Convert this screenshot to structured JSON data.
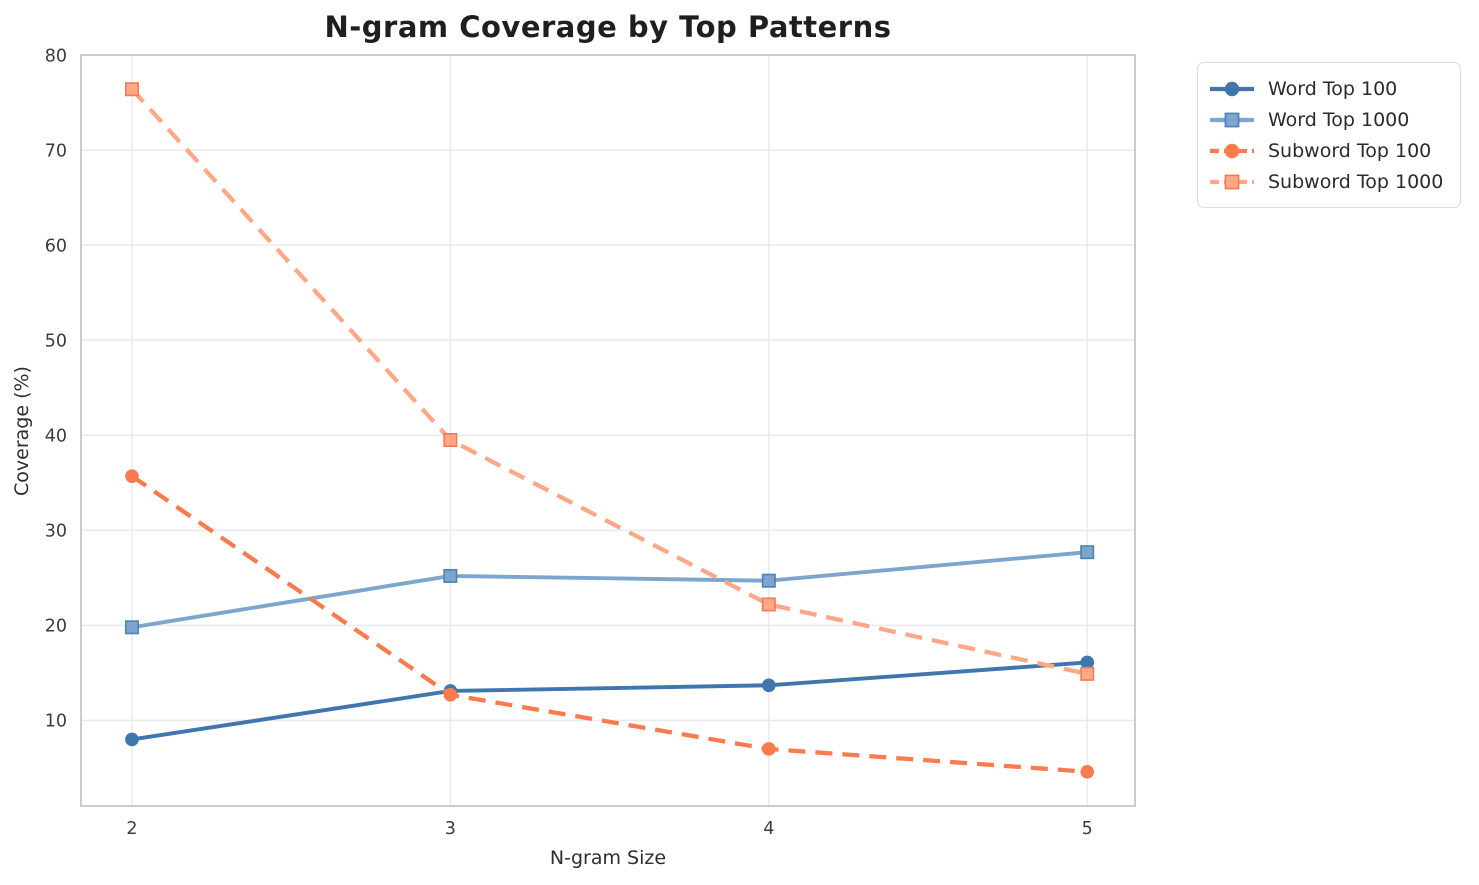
{
  "chart_data": {
    "type": "line",
    "title": "N-gram Coverage by Top Patterns",
    "xlabel": "N-gram Size",
    "ylabel": "Coverage (%)",
    "x": [
      2,
      3,
      4,
      5
    ],
    "xticks": [
      2,
      3,
      4,
      5
    ],
    "yticks": [
      10,
      20,
      30,
      40,
      50,
      60,
      70,
      80
    ],
    "xlim": [
      1.84,
      5.15
    ],
    "ylim": [
      1,
      80
    ],
    "grid": true,
    "legend_position": "outside-top-right",
    "series": [
      {
        "name": "Word Top 100",
        "color": "#3E76AD",
        "marker_edge": "#3E76AD",
        "line_style": "solid",
        "marker": "circle",
        "values": [
          8.0,
          13.1,
          13.7,
          16.1
        ]
      },
      {
        "name": "Word Top 1000",
        "color": "#7CA6CB",
        "marker_edge": "#4E81B3",
        "line_style": "solid",
        "marker": "square",
        "values": [
          19.8,
          25.2,
          24.7,
          27.7
        ]
      },
      {
        "name": "Subword Top 100",
        "color": "#FB7A4E",
        "marker_edge": "#FB7A4E",
        "line_style": "dashed",
        "marker": "circle",
        "values": [
          35.7,
          12.7,
          7.0,
          4.6
        ]
      },
      {
        "name": "Subword Top 1000",
        "color": "#FEA888",
        "marker_edge": "#F37A51",
        "line_style": "dashed",
        "marker": "square",
        "values": [
          76.4,
          39.5,
          22.2,
          14.9
        ]
      }
    ],
    "style": {
      "grid_color": "#EBEBEB",
      "spine_color": "#CCCCCC",
      "tick_color": "#3C3C3C",
      "background": "#FFFFFF"
    }
  }
}
